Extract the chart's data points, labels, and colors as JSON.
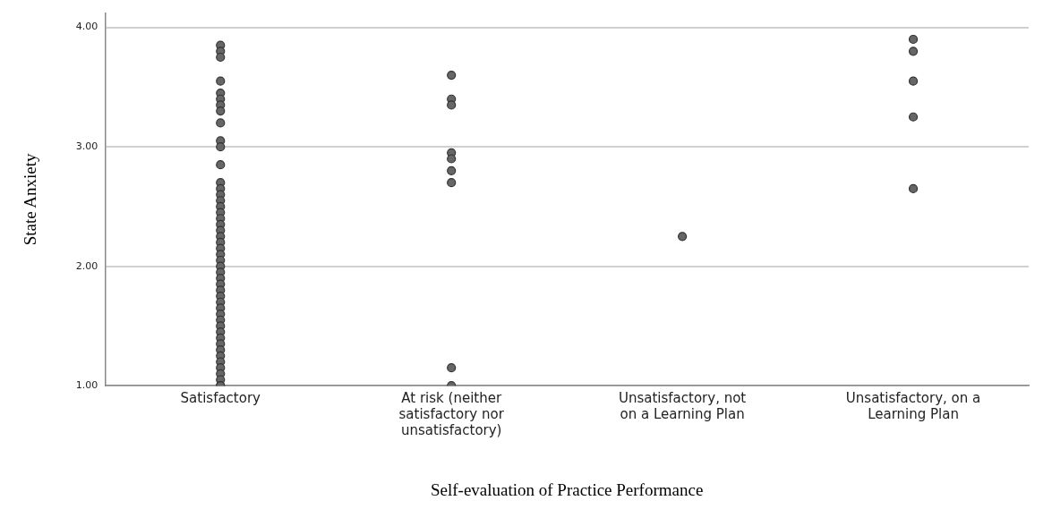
{
  "chart_data": {
    "type": "scatter",
    "xlabel": "Self-evaluation of Practice Performance",
    "ylabel": "State Anxiety",
    "categories": [
      "Satisfactory",
      "At risk (neither satisfactory nor unsatisfactory)",
      "Unsatisfactory, not on a Learning Plan",
      "Unsatisfactory, on a Learning Plan"
    ],
    "series": [
      {
        "color": "#666666",
        "x": [
          "Satisfactory",
          "Satisfactory",
          "Satisfactory",
          "Satisfactory",
          "Satisfactory",
          "Satisfactory",
          "Satisfactory",
          "Satisfactory",
          "Satisfactory",
          "Satisfactory",
          "Satisfactory",
          "Satisfactory",
          "Satisfactory",
          "Satisfactory",
          "Satisfactory",
          "Satisfactory",
          "Satisfactory",
          "Satisfactory",
          "Satisfactory",
          "Satisfactory",
          "Satisfactory",
          "Satisfactory",
          "Satisfactory",
          "Satisfactory",
          "Satisfactory",
          "Satisfactory",
          "Satisfactory",
          "Satisfactory",
          "Satisfactory",
          "Satisfactory",
          "Satisfactory",
          "Satisfactory",
          "Satisfactory",
          "Satisfactory",
          "Satisfactory",
          "Satisfactory",
          "Satisfactory",
          "Satisfactory",
          "Satisfactory",
          "Satisfactory",
          "Satisfactory",
          "Satisfactory",
          "Satisfactory",
          "Satisfactory",
          "Satisfactory",
          "Satisfactory",
          "Satisfactory",
          "Satisfactory",
          "At risk (neither satisfactory nor unsatisfactory)",
          "At risk (neither satisfactory nor unsatisfactory)",
          "At risk (neither satisfactory nor unsatisfactory)",
          "At risk (neither satisfactory nor unsatisfactory)",
          "At risk (neither satisfactory nor unsatisfactory)",
          "At risk (neither satisfactory nor unsatisfactory)",
          "At risk (neither satisfactory nor unsatisfactory)",
          "At risk (neither satisfactory nor unsatisfactory)",
          "At risk (neither satisfactory nor unsatisfactory)",
          "Unsatisfactory, not on a Learning Plan",
          "Unsatisfactory, on a Learning Plan",
          "Unsatisfactory, on a Learning Plan",
          "Unsatisfactory, on a Learning Plan",
          "Unsatisfactory, on a Learning Plan",
          "Unsatisfactory, on a Learning Plan"
        ],
        "values": [
          3.85,
          3.8,
          3.75,
          3.55,
          3.45,
          3.4,
          3.35,
          3.3,
          3.2,
          3.05,
          3.0,
          2.85,
          2.7,
          2.65,
          2.6,
          2.55,
          2.5,
          2.45,
          2.4,
          2.35,
          2.3,
          2.25,
          2.2,
          2.15,
          2.1,
          2.05,
          2.0,
          1.95,
          1.9,
          1.85,
          1.8,
          1.75,
          1.7,
          1.65,
          1.6,
          1.55,
          1.5,
          1.45,
          1.4,
          1.35,
          1.3,
          1.25,
          1.2,
          1.15,
          1.1,
          1.05,
          1.0,
          1.0,
          3.6,
          3.4,
          3.35,
          2.95,
          2.9,
          2.8,
          2.7,
          1.15,
          1.0,
          2.25,
          3.9,
          3.8,
          3.55,
          3.25,
          2.65
        ]
      }
    ],
    "ylim": [
      1,
      4.12
    ],
    "yticks": [
      {
        "value": 1,
        "label": "1.00"
      },
      {
        "value": 2,
        "label": "2.00"
      },
      {
        "value": 3,
        "label": "3.00"
      },
      {
        "value": 4,
        "label": "4.00"
      }
    ],
    "grid": "y",
    "legend": false,
    "marker": "circle"
  }
}
